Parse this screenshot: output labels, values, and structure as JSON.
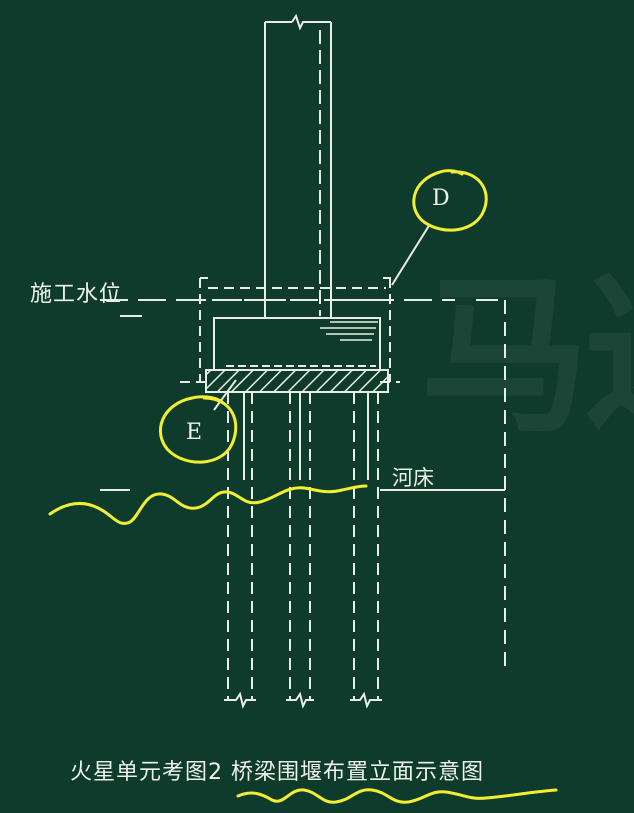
{
  "labels": {
    "water_level": "施工水位",
    "riverbed": "河床",
    "caption": "火星单元考图2 桥梁围堰布置立面示意图",
    "marker_d": "D",
    "marker_e": "E",
    "watermark": "马达"
  },
  "colors": {
    "background": "#0f3b2c",
    "line": "#e8eee6",
    "highlight": "#f2ef33"
  }
}
